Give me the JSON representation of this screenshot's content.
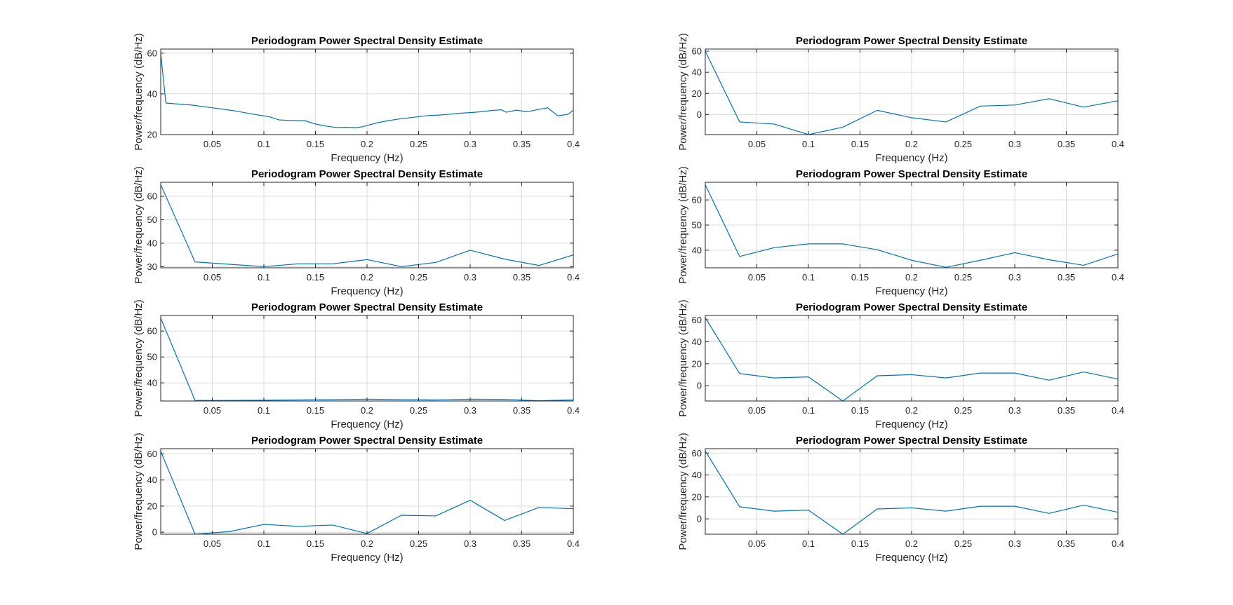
{
  "figure": {
    "line_color": "#0072BD",
    "grid_color": "#dcdcdc",
    "axes_color": "#262626"
  },
  "chart_data": [
    {
      "type": "line",
      "title": "Periodogram Power Spectral Density Estimate",
      "xlabel": "Frequency (Hz)",
      "ylabel": "Power/frequency (dB/Hz)",
      "xlim": [
        0,
        0.4
      ],
      "ylim": [
        20,
        62
      ],
      "xticks": [
        0.05,
        0.1,
        0.15,
        0.2,
        0.25,
        0.3,
        0.35,
        0.4
      ],
      "xtick_labels": [
        "0.05",
        "0.1",
        "0.15",
        "0.2",
        "0.25",
        "0.3",
        "0.35",
        "0.4"
      ],
      "yticks": [
        20,
        40,
        60
      ],
      "ytick_labels": [
        "20",
        "40",
        "60"
      ],
      "grid": true,
      "series": [
        {
          "x": [
            0,
            0.005,
            0.03,
            0.05,
            0.07,
            0.09,
            0.105,
            0.115,
            0.125,
            0.14,
            0.15,
            0.16,
            0.17,
            0.18,
            0.19,
            0.195,
            0.21,
            0.22,
            0.23,
            0.24,
            0.25,
            0.26,
            0.27,
            0.28,
            0.29,
            0.3,
            0.31,
            0.32,
            0.33,
            0.335,
            0.345,
            0.355,
            0.365,
            0.375,
            0.385,
            0.395,
            0.4
          ],
          "y": [
            60,
            35.5,
            34.5,
            33.2,
            31.8,
            30,
            28.8,
            27.2,
            27,
            26.8,
            25.2,
            24.2,
            23.5,
            23.6,
            23.4,
            23.8,
            25.8,
            26.8,
            27.6,
            28.2,
            28.8,
            29.4,
            29.6,
            30,
            30.5,
            30.8,
            31.2,
            31.8,
            32.2,
            31,
            32,
            31.2,
            32.2,
            33.2,
            29.2,
            30,
            32
          ]
        }
      ]
    },
    {
      "type": "line",
      "title": "Periodogram Power Spectral Density Estimate",
      "xlabel": "Frequency (Hz)",
      "ylabel": "Power/frequency (dB/Hz)",
      "xlim": [
        0,
        0.4
      ],
      "ylim": [
        -19,
        62
      ],
      "xticks": [
        0.05,
        0.1,
        0.15,
        0.2,
        0.25,
        0.3,
        0.35,
        0.4
      ],
      "xtick_labels": [
        "0.05",
        "0.1",
        "0.15",
        "0.2",
        "0.25",
        "0.3",
        "0.35",
        "0.4"
      ],
      "yticks": [
        0,
        20,
        40,
        60
      ],
      "ytick_labels": [
        "0",
        "20",
        "40",
        "60"
      ],
      "grid": true,
      "series": [
        {
          "x": [
            0,
            0.0333,
            0.0667,
            0.1,
            0.1333,
            0.1667,
            0.2,
            0.2333,
            0.2667,
            0.3,
            0.3333,
            0.3667,
            0.4
          ],
          "y": [
            60,
            -7,
            -9,
            -19,
            -12,
            4,
            -3,
            -7,
            8,
            9,
            15,
            7,
            13
          ]
        }
      ]
    },
    {
      "type": "line",
      "title": "Periodogram Power Spectral Density Estimate",
      "xlabel": "Frequency (Hz)",
      "ylabel": "Power/frequency (dB/Hz)",
      "xlim": [
        0,
        0.4
      ],
      "ylim": [
        29.5,
        66
      ],
      "xticks": [
        0.05,
        0.1,
        0.15,
        0.2,
        0.25,
        0.3,
        0.35,
        0.4
      ],
      "xtick_labels": [
        "0.05",
        "0.1",
        "0.15",
        "0.2",
        "0.25",
        "0.3",
        "0.35",
        "0.4"
      ],
      "yticks": [
        30,
        40,
        50,
        60
      ],
      "ytick_labels": [
        "30",
        "40",
        "50",
        "60"
      ],
      "grid": true,
      "series": [
        {
          "x": [
            0,
            0.0333,
            0.0667,
            0.1,
            0.1333,
            0.1667,
            0.2,
            0.2333,
            0.2667,
            0.3,
            0.3333,
            0.3667,
            0.4
          ],
          "y": [
            65,
            32,
            31,
            30,
            31.2,
            31.2,
            33,
            30,
            31.8,
            37,
            33.2,
            30.5,
            35
          ]
        }
      ]
    },
    {
      "type": "line",
      "title": "Periodogram Power Spectral Density Estimate",
      "xlabel": "Frequency (Hz)",
      "ylabel": "Power/frequency (dB/Hz)",
      "xlim": [
        0,
        0.4
      ],
      "ylim": [
        33,
        67
      ],
      "xticks": [
        0.05,
        0.1,
        0.15,
        0.2,
        0.25,
        0.3,
        0.35,
        0.4
      ],
      "xtick_labels": [
        "0.05",
        "0.1",
        "0.15",
        "0.2",
        "0.25",
        "0.3",
        "0.35",
        "0.4"
      ],
      "yticks": [
        40,
        50,
        60
      ],
      "ytick_labels": [
        "40",
        "50",
        "60"
      ],
      "grid": true,
      "series": [
        {
          "x": [
            0,
            0.0333,
            0.0667,
            0.1,
            0.1333,
            0.1667,
            0.2,
            0.2333,
            0.2667,
            0.3,
            0.3333,
            0.3667,
            0.4
          ],
          "y": [
            66,
            37.5,
            41,
            42.5,
            42.5,
            40.2,
            36,
            33.2,
            36,
            39,
            36.2,
            34,
            38.5
          ]
        }
      ]
    },
    {
      "type": "line",
      "title": "Periodogram Power Spectral Density Estimate",
      "xlabel": "Frequency (Hz)",
      "ylabel": "Power/frequency (dB/Hz)",
      "xlim": [
        0,
        0.4
      ],
      "ylim": [
        33,
        66
      ],
      "xticks": [
        0.05,
        0.1,
        0.15,
        0.2,
        0.25,
        0.3,
        0.35,
        0.4
      ],
      "xtick_labels": [
        "0.05",
        "0.1",
        "0.15",
        "0.2",
        "0.25",
        "0.3",
        "0.35",
        "0.4"
      ],
      "yticks": [
        40,
        50,
        60
      ],
      "ytick_labels": [
        "40",
        "50",
        "60"
      ],
      "grid": true,
      "series": [
        {
          "x": [
            0,
            0.0333,
            0.0667,
            0.1,
            0.1333,
            0.1667,
            0.2,
            0.2333,
            0.2667,
            0.3,
            0.3333,
            0.3667,
            0.4
          ],
          "y": [
            65,
            33.2,
            33.2,
            33.3,
            33.4,
            33.5,
            33.7,
            33.5,
            33.4,
            33.7,
            33.6,
            33.1,
            33.4
          ]
        }
      ]
    },
    {
      "type": "line",
      "title": "Periodogram Power Spectral Density Estimate",
      "xlabel": "Frequency (Hz)",
      "ylabel": "Power/frequency (dB/Hz)",
      "xlim": [
        0,
        0.4
      ],
      "ylim": [
        -14,
        64
      ],
      "xticks": [
        0.05,
        0.1,
        0.15,
        0.2,
        0.25,
        0.3,
        0.35,
        0.4
      ],
      "xtick_labels": [
        "0.05",
        "0.1",
        "0.15",
        "0.2",
        "0.25",
        "0.3",
        "0.35",
        "0.4"
      ],
      "yticks": [
        0,
        20,
        40,
        60
      ],
      "ytick_labels": [
        "0",
        "20",
        "40",
        "60"
      ],
      "grid": true,
      "series": [
        {
          "x": [
            0,
            0.0333,
            0.0667,
            0.1,
            0.1333,
            0.1667,
            0.2,
            0.2333,
            0.2667,
            0.3,
            0.3333,
            0.3667,
            0.4
          ],
          "y": [
            62,
            11,
            7,
            8,
            -14,
            9,
            10,
            7,
            11.5,
            11.5,
            5,
            12.5,
            6
          ]
        }
      ]
    },
    {
      "type": "line",
      "title": "Periodogram Power Spectral Density Estimate",
      "xlabel": "Frequency (Hz)",
      "ylabel": "Power/frequency (dB/Hz)",
      "xlim": [
        0,
        0.4
      ],
      "ylim": [
        -1.5,
        64
      ],
      "xticks": [
        0.05,
        0.1,
        0.15,
        0.2,
        0.25,
        0.3,
        0.35,
        0.4
      ],
      "xtick_labels": [
        "0.05",
        "0.1",
        "0.15",
        "0.2",
        "0.25",
        "0.3",
        "0.35",
        "0.4"
      ],
      "yticks": [
        0,
        20,
        40,
        60
      ],
      "ytick_labels": [
        "0",
        "20",
        "40",
        "60"
      ],
      "grid": true,
      "series": [
        {
          "x": [
            0,
            0.0333,
            0.0667,
            0.1,
            0.1333,
            0.1667,
            0.2,
            0.2333,
            0.2667,
            0.3,
            0.3333,
            0.3667,
            0.4
          ],
          "y": [
            62,
            -1.5,
            0.5,
            6,
            4.5,
            5.5,
            -1,
            13,
            12.5,
            24.5,
            9,
            19,
            18
          ]
        }
      ]
    },
    {
      "type": "line",
      "title": "Periodogram Power Spectral Density Estimate",
      "xlabel": "Frequency (Hz)",
      "ylabel": "Power/frequency (dB/Hz)",
      "xlim": [
        0,
        0.4
      ],
      "ylim": [
        -14,
        64
      ],
      "xticks": [
        0.05,
        0.1,
        0.15,
        0.2,
        0.25,
        0.3,
        0.35,
        0.4
      ],
      "xtick_labels": [
        "0.05",
        "0.1",
        "0.15",
        "0.2",
        "0.25",
        "0.3",
        "0.35",
        "0.4"
      ],
      "yticks": [
        0,
        20,
        40,
        60
      ],
      "ytick_labels": [
        "0",
        "20",
        "40",
        "60"
      ],
      "grid": true,
      "series": [
        {
          "x": [
            0,
            0.0333,
            0.0667,
            0.1,
            0.1333,
            0.1667,
            0.2,
            0.2333,
            0.2667,
            0.3,
            0.3333,
            0.3667,
            0.4
          ],
          "y": [
            62,
            11,
            7,
            8,
            -14,
            9,
            10,
            7,
            11.5,
            11.5,
            5,
            12.5,
            6
          ]
        }
      ]
    }
  ]
}
